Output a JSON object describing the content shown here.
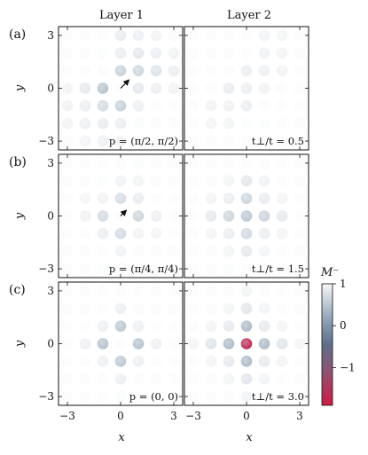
{
  "chart_data": {
    "type": "heatmap",
    "column_titles": [
      "Layer 1",
      "Layer 2"
    ],
    "xlabel": "x",
    "ylabel": "y",
    "x_ticks": [
      "−3",
      "0",
      "3"
    ],
    "y_ticks": [
      "3",
      "0",
      "−3"
    ],
    "xlim": [
      -3.5,
      3.5
    ],
    "ylim": [
      -3.5,
      3.5
    ],
    "colorbar": {
      "label": "M⁻",
      "range": [
        -1.9,
        1
      ],
      "ticks": [
        "1",
        "0",
        "−1"
      ],
      "tick_values": [
        1,
        0,
        -1
      ]
    },
    "rows": [
      {
        "tag": "(a)",
        "momentum_label": "p = (π/2, π/2)",
        "ratio_label": "t⊥/t = 0.5",
        "arrow": [
          0.45,
          0.45
        ],
        "layer1": [
          [
            0,
            3,
            0.12
          ],
          [
            1,
            3,
            0.08
          ],
          [
            2,
            3,
            0.05
          ],
          [
            0,
            2,
            0.1
          ],
          [
            1,
            2,
            0.16
          ],
          [
            2,
            2,
            0.1
          ],
          [
            3,
            2,
            0.06
          ],
          [
            0,
            1,
            0.4
          ],
          [
            1,
            1,
            0.35
          ],
          [
            2,
            1,
            0.22
          ],
          [
            3,
            1,
            0.1
          ],
          [
            -3,
            0,
            0.05
          ],
          [
            -2,
            0,
            0.14
          ],
          [
            -1,
            0,
            0.55
          ],
          [
            1,
            0,
            0.16
          ],
          [
            2,
            0,
            0.1
          ],
          [
            3,
            0,
            0.06
          ],
          [
            -3,
            -1,
            0.06
          ],
          [
            -2,
            -1,
            0.1
          ],
          [
            -1,
            -1,
            0.3
          ],
          [
            0,
            -1,
            0.42
          ],
          [
            1,
            -1,
            0.08
          ],
          [
            -3,
            -2,
            0.05
          ],
          [
            -2,
            -2,
            0.08
          ],
          [
            -1,
            -2,
            0.12
          ],
          [
            0,
            -2,
            0.1
          ],
          [
            -2,
            -3,
            0.05
          ],
          [
            -1,
            -3,
            0.08
          ],
          [
            0,
            -3,
            0.06
          ]
        ],
        "layer2": [
          [
            1,
            3,
            0.05
          ],
          [
            2,
            3,
            0.04
          ],
          [
            1,
            2,
            0.06
          ],
          [
            2,
            2,
            0.05
          ],
          [
            0,
            1,
            0.1
          ],
          [
            1,
            1,
            0.08
          ],
          [
            2,
            1,
            0.05
          ],
          [
            -1,
            0,
            0.12
          ],
          [
            0,
            0,
            0.1
          ],
          [
            1,
            0,
            0.06
          ],
          [
            -2,
            -1,
            0.05
          ],
          [
            -1,
            -1,
            0.06
          ],
          [
            0,
            -1,
            0.1
          ],
          [
            -2,
            -2,
            0.04
          ],
          [
            -1,
            -2,
            0.04
          ]
        ]
      },
      {
        "tag": "(b)",
        "momentum_label": "p = (π/4, π/4)",
        "ratio_label": "t⊥/t = 1.5",
        "arrow": [
          0.3,
          0.3
        ],
        "layer1": [
          [
            0,
            2,
            0.06
          ],
          [
            0,
            1,
            0.28
          ],
          [
            1,
            1,
            0.12
          ],
          [
            -1,
            1,
            0.05
          ],
          [
            -2,
            0,
            0.06
          ],
          [
            -1,
            0,
            0.3
          ],
          [
            1,
            0,
            0.35
          ],
          [
            2,
            0,
            0.08
          ],
          [
            -1,
            -1,
            0.1
          ],
          [
            0,
            -1,
            0.3
          ],
          [
            1,
            -1,
            0.05
          ],
          [
            0,
            -2,
            0.06
          ],
          [
            1,
            2,
            0.04
          ],
          [
            -2,
            1,
            0.03
          ],
          [
            2,
            -1,
            0.03
          ]
        ],
        "layer2": [
          [
            0,
            2,
            0.18
          ],
          [
            -1,
            2,
            0.04
          ],
          [
            1,
            2,
            0.06
          ],
          [
            -2,
            1,
            0.04
          ],
          [
            -1,
            1,
            0.1
          ],
          [
            0,
            1,
            0.35
          ],
          [
            1,
            1,
            0.12
          ],
          [
            2,
            1,
            0.04
          ],
          [
            -2,
            0,
            0.15
          ],
          [
            -1,
            0,
            0.35
          ],
          [
            0,
            0,
            0.5
          ],
          [
            1,
            0,
            0.38
          ],
          [
            2,
            0,
            0.14
          ],
          [
            -2,
            -1,
            0.04
          ],
          [
            -1,
            -1,
            0.1
          ],
          [
            0,
            -1,
            0.32
          ],
          [
            1,
            -1,
            0.1
          ],
          [
            2,
            -1,
            0.04
          ],
          [
            -1,
            -2,
            0.04
          ],
          [
            0,
            -2,
            0.15
          ],
          [
            1,
            -2,
            0.04
          ]
        ]
      },
      {
        "tag": "(c)",
        "momentum_label": "p = (0, 0)",
        "ratio_label": "t⊥/t = 3.0",
        "arrow": null,
        "layer1": [
          [
            0,
            2,
            0.08
          ],
          [
            -1,
            1,
            0.08
          ],
          [
            0,
            1,
            0.5
          ],
          [
            1,
            1,
            0.08
          ],
          [
            -2,
            0,
            0.08
          ],
          [
            -1,
            0,
            0.55
          ],
          [
            1,
            0,
            0.55
          ],
          [
            2,
            0,
            0.08
          ],
          [
            -1,
            -1,
            0.08
          ],
          [
            0,
            -1,
            0.5
          ],
          [
            1,
            -1,
            0.08
          ],
          [
            0,
            -2,
            0.08
          ]
        ],
        "layer2": [
          [
            0,
            3,
            0.04
          ],
          [
            0,
            2,
            0.18
          ],
          [
            -1,
            2,
            0.04
          ],
          [
            1,
            2,
            0.04
          ],
          [
            -2,
            1,
            0.04
          ],
          [
            -1,
            1,
            0.14
          ],
          [
            0,
            1,
            0.62
          ],
          [
            1,
            1,
            0.14
          ],
          [
            2,
            1,
            0.04
          ],
          [
            -3,
            0,
            0.04
          ],
          [
            -2,
            0,
            0.2
          ],
          [
            -1,
            0,
            0.62
          ],
          [
            0,
            0,
            -1.65
          ],
          [
            1,
            0,
            0.62
          ],
          [
            2,
            0,
            0.2
          ],
          [
            3,
            0,
            0.04
          ],
          [
            -2,
            -1,
            0.04
          ],
          [
            -1,
            -1,
            0.14
          ],
          [
            0,
            -1,
            0.62
          ],
          [
            1,
            -1,
            0.14
          ],
          [
            2,
            -1,
            0.04
          ],
          [
            0,
            -2,
            0.18
          ],
          [
            -1,
            -2,
            0.04
          ],
          [
            1,
            -2,
            0.04
          ],
          [
            0,
            -3,
            0.04
          ]
        ]
      }
    ]
  }
}
